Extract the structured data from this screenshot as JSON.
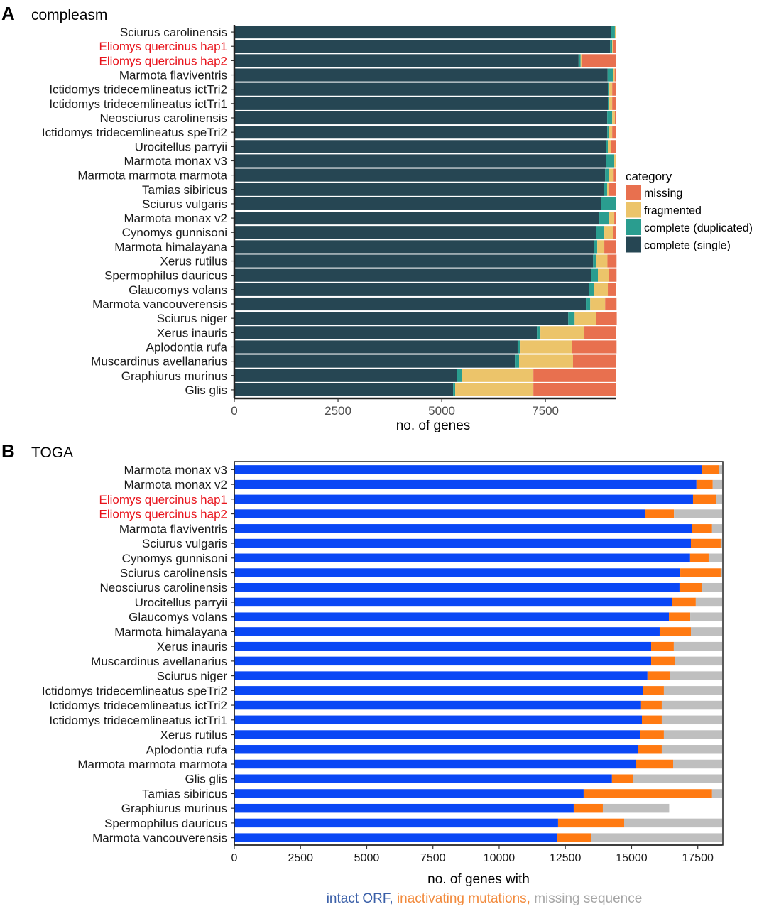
{
  "chart_data": [
    {
      "type": "bar",
      "orientation": "horizontal",
      "stacked": true,
      "panel_letter": "A",
      "title": "compleasm",
      "xlabel": "no. of genes",
      "ylabel": "",
      "xlim": [
        0,
        9210
      ],
      "xticks": [
        0,
        2500,
        5000,
        7500
      ],
      "xtick_labels": [
        "0",
        "2500",
        "5000",
        "7500"
      ],
      "grid": false,
      "legend": {
        "title": "category",
        "position": "right",
        "entries": [
          {
            "label": "missing",
            "color": "#e8704f"
          },
          {
            "label": "fragmented",
            "color": "#ecc46a"
          },
          {
            "label": "complete (duplicated)",
            "color": "#2a9d8f"
          },
          {
            "label": "complete (single)",
            "color": "#264653"
          }
        ]
      },
      "stack_order": [
        "complete (single)",
        "complete (duplicated)",
        "fragmented",
        "missing"
      ],
      "highlight_color": "#e8141c",
      "categories": [
        "Sciurus carolinensis",
        "Eliomys quercinus hap1",
        "Eliomys quercinus hap2",
        "Marmota flaviventris",
        "Ictidomys tridecemlineatus ictTri2",
        "Ictidomys tridecemlineatus ictTri1",
        "Neosciurus carolinensis",
        "Ictidomys tridecemlineatus speTri2",
        "Urocitellus parryii",
        "Marmota monax v3",
        "Marmota marmota marmota",
        "Tamias sibiricus",
        "Sciurus vulgaris",
        "Marmota monax v2",
        "Cynomys gunnisoni",
        "Marmota himalayana",
        "Xerus rutilus",
        "Spermophilus dauricus",
        "Glaucomys volans",
        "Marmota vancouverensis",
        "Sciurus niger",
        "Xerus inauris",
        "Aplodontia rufa",
        "Muscardinus avellanarius",
        "Graphiurus murinus",
        "Glis glis"
      ],
      "highlighted": [
        1,
        2
      ],
      "series": [
        {
          "name": "complete (single)",
          "color": "#264653",
          "values": [
            9075,
            9060,
            8300,
            9000,
            9005,
            9005,
            8990,
            8990,
            8970,
            8955,
            8940,
            8905,
            8835,
            8800,
            8715,
            8665,
            8650,
            8595,
            8545,
            8475,
            8050,
            7295,
            6830,
            6765,
            5375,
            5275
          ]
        },
        {
          "name": "complete (duplicated)",
          "color": "#2a9d8f",
          "values": [
            100,
            50,
            50,
            135,
            35,
            35,
            120,
            35,
            35,
            205,
            85,
            85,
            360,
            240,
            205,
            85,
            70,
            170,
            120,
            105,
            155,
            85,
            70,
            100,
            105,
            50
          ]
        },
        {
          "name": "fragmented",
          "color": "#ecc46a",
          "values": [
            20,
            20,
            20,
            35,
            70,
            70,
            65,
            85,
            85,
            35,
            120,
            35,
            15,
            120,
            205,
            170,
            275,
            260,
            340,
            360,
            515,
            1060,
            1235,
            1300,
            1730,
            1885
          ]
        },
        {
          "name": "missing",
          "color": "#e8704f",
          "values": [
            15,
            80,
            840,
            40,
            100,
            100,
            35,
            100,
            120,
            15,
            65,
            185,
            0,
            50,
            85,
            290,
            220,
            190,
            205,
            275,
            500,
            770,
            1080,
            1045,
            2000,
            2000
          ]
        }
      ]
    },
    {
      "type": "bar",
      "orientation": "horizontal",
      "stacked": true,
      "panel_letter": "B",
      "title": "TOGA",
      "xlabel": "no. of genes with",
      "xlabel_parts": [
        {
          "text": "intact ORF, ",
          "color": "#3a5fa8"
        },
        {
          "text": "inactivating mutations, ",
          "color": "#f28a3c"
        },
        {
          "text": "missing sequence",
          "color": "#a6a6a6"
        }
      ],
      "ylabel": "",
      "xlim": [
        0,
        18420
      ],
      "xticks": [
        0,
        2500,
        5000,
        7500,
        10000,
        12500,
        15000,
        17500
      ],
      "xtick_labels": [
        "0",
        "2500",
        "5000",
        "7500",
        "10000",
        "12500",
        "15000",
        "17500"
      ],
      "grid": false,
      "legend": null,
      "stack_order": [
        "intact ORF",
        "inactivating mutations",
        "missing sequence"
      ],
      "highlight_color": "#e8141c",
      "categories": [
        "Marmota monax v3",
        "Marmota monax v2",
        "Eliomys quercinus hap1",
        "Eliomys quercinus hap2",
        "Marmota flaviventris",
        "Sciurus vulgaris",
        "Cynomys gunnisoni",
        "Sciurus carolinensis",
        "Neosciurus carolinensis",
        "Urocitellus parryii",
        "Glaucomys volans",
        "Marmota himalayana",
        "Xerus inauris",
        "Muscardinus avellanarius",
        "Sciurus niger",
        "Ictidomys tridecemlineatus speTri2",
        "Ictidomys tridecemlineatus ictTri2",
        "Ictidomys tridecemlineatus ictTri1",
        "Xerus rutilus",
        "Aplodontia rufa",
        "Marmota marmota marmota",
        "Glis glis",
        "Tamias sibiricus",
        "Graphiurus murinus",
        "Spermophilus dauricus",
        "Marmota vancouverensis"
      ],
      "highlighted": [
        2,
        3
      ],
      "series": [
        {
          "name": "intact ORF",
          "color": "#0a47f5",
          "values": [
            17670,
            17450,
            17320,
            15500,
            17290,
            17240,
            17210,
            16840,
            16810,
            16540,
            16410,
            16060,
            15740,
            15740,
            15600,
            15440,
            15360,
            15390,
            15335,
            15255,
            15175,
            14260,
            13190,
            12815,
            12225,
            12200
          ]
        },
        {
          "name": "inactivating mutations",
          "color": "#ff7a12",
          "values": [
            640,
            615,
            885,
            1100,
            750,
            1125,
            700,
            1525,
            860,
            885,
            805,
            1180,
            855,
            885,
            860,
            780,
            780,
            750,
            885,
            885,
            1395,
            805,
            4850,
            1100,
            2495,
            1260
          ]
        },
        {
          "name": "missing sequence",
          "color": "#bfbfbf",
          "values": [
            110,
            355,
            215,
            1820,
            380,
            55,
            510,
            55,
            750,
            995,
            1205,
            1180,
            1825,
            1795,
            1960,
            2200,
            2280,
            2280,
            2200,
            2280,
            1850,
            3355,
            380,
            2505,
            3700,
            4960
          ]
        }
      ]
    }
  ]
}
